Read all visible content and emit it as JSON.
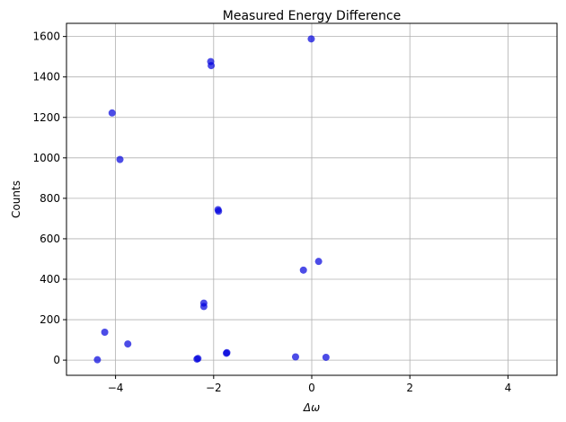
{
  "chart_data": {
    "type": "scatter",
    "title": "Measured Energy Difference",
    "xlabel": "Δω",
    "ylabel": "Counts",
    "xlim": [
      -5,
      5
    ],
    "ylim": [
      -75,
      1665
    ],
    "xticks": [
      -4,
      -2,
      0,
      2,
      4
    ],
    "yticks": [
      0,
      200,
      400,
      600,
      800,
      1000,
      1200,
      1400,
      1600
    ],
    "grid": true,
    "marker_color": "#0000dd",
    "marker_alpha": 0.7,
    "series": [
      {
        "points": [
          {
            "x": -4.37,
            "y": 2
          },
          {
            "x": -4.22,
            "y": 138
          },
          {
            "x": -4.07,
            "y": 1222
          },
          {
            "x": -3.91,
            "y": 992
          },
          {
            "x": -3.75,
            "y": 80
          },
          {
            "x": -2.34,
            "y": 5
          },
          {
            "x": -2.32,
            "y": 8
          },
          {
            "x": -2.2,
            "y": 282
          },
          {
            "x": -2.2,
            "y": 265
          },
          {
            "x": -2.06,
            "y": 1476
          },
          {
            "x": -2.05,
            "y": 1456
          },
          {
            "x": -1.91,
            "y": 744
          },
          {
            "x": -1.9,
            "y": 736
          },
          {
            "x": -1.74,
            "y": 34
          },
          {
            "x": -1.73,
            "y": 37
          },
          {
            "x": -0.33,
            "y": 16
          },
          {
            "x": -0.17,
            "y": 445
          },
          {
            "x": -0.01,
            "y": 1588
          },
          {
            "x": 0.14,
            "y": 488
          },
          {
            "x": 0.29,
            "y": 14
          }
        ]
      }
    ]
  }
}
